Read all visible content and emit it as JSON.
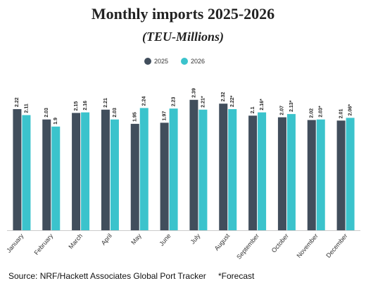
{
  "chart_data": {
    "type": "bar",
    "title": "Monthly imports 2025-2026",
    "subtitle": "(TEU-Millions)",
    "categories": [
      "January",
      "February",
      "March",
      "April",
      "May",
      "June",
      "July",
      "August",
      "September",
      "October",
      "November",
      "December"
    ],
    "series": [
      {
        "name": "2025",
        "color": "#414e5c",
        "values": [
          2.22,
          2.03,
          2.15,
          2.21,
          1.95,
          1.97,
          2.39,
          2.32,
          2.1,
          2.07,
          2.02,
          2.01
        ]
      },
      {
        "name": "2026",
        "color": "#3bc3cc",
        "values": [
          2.11,
          1.9,
          2.16,
          2.03,
          2.24,
          2.23,
          2.21,
          2.22,
          2.16,
          2.13,
          2.03,
          2.06
        ],
        "value_labels": [
          "2.11",
          "1.9",
          "2.16",
          "2.03",
          "2.24",
          "2.23",
          "2.21*",
          "2.22*",
          "2.16*",
          "2.13*",
          "2.03*",
          "2.06*"
        ]
      }
    ],
    "source": "Source: NRF/Hackett Associates Global Port Tracker",
    "note": "*Forecast"
  }
}
